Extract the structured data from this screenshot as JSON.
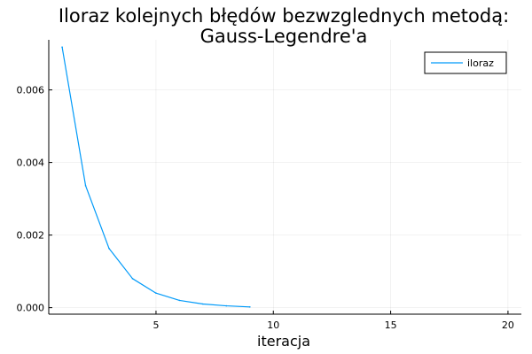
{
  "chart_data": {
    "type": "line",
    "title": [
      "Iloraz kolejnych błędów bezwzglednych metodą:",
      "Gauss-Legendre'a"
    ],
    "xlabel": "iteracja",
    "ylabel": "",
    "xlim": [
      0.43,
      20.57
    ],
    "ylim": [
      -0.00018,
      0.00738
    ],
    "x_ticks": [
      5,
      10,
      15,
      20
    ],
    "x_tick_labels": [
      "5",
      "10",
      "15",
      "20"
    ],
    "y_ticks": [
      0,
      0.002,
      0.004,
      0.006
    ],
    "y_tick_labels": [
      "0.000",
      "0.002",
      "0.004",
      "0.006"
    ],
    "grid": true,
    "legend_position": "top-right",
    "series": [
      {
        "name": "iloraz",
        "color": "#009af9",
        "x": [
          1,
          2,
          3,
          4,
          5,
          6,
          7,
          8,
          9
        ],
        "y": [
          0.00718,
          0.00336,
          0.00163,
          0.0008,
          0.0004,
          0.0002,
          0.0001,
          5e-05,
          2e-05
        ]
      }
    ]
  }
}
